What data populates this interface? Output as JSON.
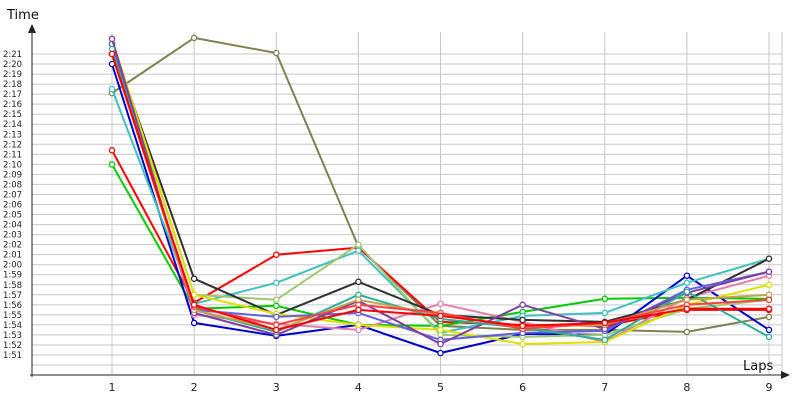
{
  "chart_data": {
    "type": "line",
    "title": "",
    "xlabel": "Laps",
    "ylabel": "Time",
    "grid": true,
    "legend": "none",
    "x": [
      1,
      2,
      3,
      4,
      5,
      6,
      7,
      8,
      9
    ],
    "ylim_seconds": [
      110,
      143
    ],
    "yticks": [
      "1:51",
      "1:52",
      "1:53",
      "1:54",
      "1:55",
      "1:56",
      "1:57",
      "1:58",
      "1:59",
      "2:00",
      "2:01",
      "2:02",
      "2:03",
      "2:04",
      "2:05",
      "2:06",
      "2:07",
      "2:08",
      "2:09",
      "2:10",
      "2:11",
      "2:12",
      "2:13",
      "2:14",
      "2:15",
      "2:16",
      "2:17",
      "2:18",
      "2:19",
      "2:20",
      "2:21"
    ],
    "xticks": [
      "1",
      "2",
      "3",
      "4",
      "5",
      "6",
      "7",
      "8",
      "9"
    ],
    "series": [
      {
        "color": "#808050",
        "values": [
          "2:17.1",
          "2:22.6",
          "2:21.1",
          "2:01.8",
          "1:53.9",
          "1:53.5",
          "1:53.5",
          "1:53.3",
          "1:54.8"
        ]
      },
      {
        "color": "#ff0000",
        "values": [
          "2:11.4",
          "1:56.2",
          "2:01.0",
          "2:01.7",
          "1:54.3",
          "1:54.0",
          "1:53.9",
          "1:55.5",
          "1:55.5"
        ]
      },
      {
        "color": "#00cc00",
        "values": [
          "2:10.0",
          "1:55.6",
          "1:55.9",
          "1:54.0",
          "1:53.9",
          "1:55.3",
          "1:56.6",
          "1:56.7",
          "1:56.6"
        ]
      },
      {
        "color": "#0000cc",
        "values": [
          "2:20.0",
          "1:54.2",
          "1:52.9",
          "1:54.0",
          "1:51.2",
          "1:53.1",
          "1:53.0",
          "1:58.9",
          "1:53.5"
        ]
      },
      {
        "color": "#40c0c0",
        "values": [
          "2:17.5",
          "1:56.1",
          "1:58.2",
          "2:01.4",
          "1:53.2",
          "1:54.9",
          "1:55.2",
          "1:58.2",
          "2:00.6"
        ]
      },
      {
        "color": "#e080b0",
        "values": [
          "2:22.5",
          "1:55.0",
          "1:54.1",
          "1:53.5",
          "1:56.1",
          "1:54.3",
          "1:52.3",
          "1:56.7",
          "1:58.9"
        ]
      },
      {
        "color": "#a0c870",
        "values": [
          "2:22.0",
          "1:57.0",
          "1:56.5",
          "2:02.0",
          "1:53.0",
          "1:52.8",
          "1:53.0",
          "1:55.6",
          "1:56.5"
        ]
      },
      {
        "color": "#303030",
        "values": [
          "2:22.0",
          "1:58.6",
          "1:55.0",
          "1:58.3",
          "1:55.0",
          "1:54.5",
          "1:54.3",
          "1:56.5",
          "2:00.6"
        ]
      },
      {
        "color": "#e0e000",
        "values": [
          "2:22.5",
          "1:57.0",
          "1:55.1",
          "1:54.0",
          "1:53.5",
          "1:52.1",
          "1:52.3",
          "1:56.0",
          "1:58.0"
        ]
      },
      {
        "color": "#6060e0",
        "values": [
          "2:22.0",
          "1:55.5",
          "1:54.8",
          "1:55.2",
          "1:52.5",
          "1:53.2",
          "1:53.4",
          "1:57.5",
          "1:59.3"
        ]
      },
      {
        "color": "#8040a0",
        "values": [
          "2:22.5",
          "1:55.2",
          "1:53.0",
          "1:56.4",
          "1:52.1",
          "1:56.0",
          "1:53.6",
          "1:57.2",
          "1:59.3"
        ]
      },
      {
        "color": "#2cb09a",
        "values": [
          "2:21.5",
          "1:55.5",
          "1:53.3",
          "1:57.0",
          "1:54.6",
          "1:53.7",
          "1:52.5",
          "1:57.3",
          "1:52.8"
        ]
      },
      {
        "color": "#c8a050",
        "values": [
          "2:21.0",
          "1:55.5",
          "1:53.5",
          "1:56.5",
          "1:55.0",
          "1:53.8",
          "1:54.0",
          "1:56.5",
          "1:57.0"
        ]
      },
      {
        "color": "#ff4040",
        "values": [
          "2:21.0",
          "1:55.8",
          "1:54.0",
          "1:56.0",
          "1:55.2",
          "1:53.6",
          "1:54.2",
          "1:56.0",
          "1:56.5"
        ]
      },
      {
        "color": "#ff0000",
        "values": [
          "2:21.0",
          "1:56.0",
          "1:53.5",
          "1:55.5",
          "1:54.9",
          "1:53.9",
          "1:54.2",
          "1:55.6",
          "1:55.6"
        ]
      }
    ]
  }
}
